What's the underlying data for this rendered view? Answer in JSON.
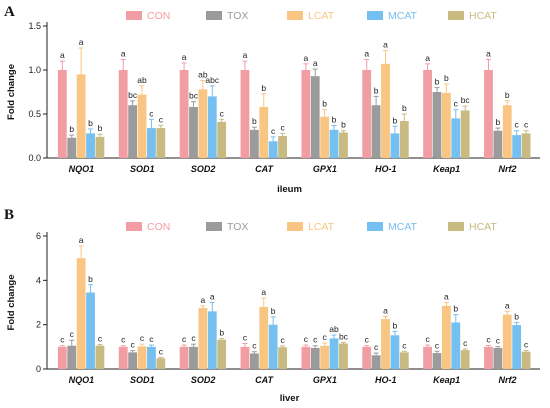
{
  "series_colors": {
    "CON": "#f29ca3",
    "TOX": "#9b9b9b",
    "LCAT": "#f8c583",
    "MCAT": "#76bff1",
    "HCAT": "#c8ba80"
  },
  "chart_data": [
    {
      "panel": "A",
      "type": "bar",
      "xlabel": "ileum",
      "ylabel": "Fold change",
      "ylim": [
        0,
        1.5
      ],
      "yticks": [
        "0.0",
        "0.5",
        "1.0",
        "1.5"
      ],
      "grid": false,
      "legend_position": "top",
      "categories": [
        "NQO1",
        "SOD1",
        "SOD2",
        "CAT",
        "GPX1",
        "HO-1",
        "Keap1",
        "Nrf2"
      ],
      "series": [
        {
          "name": "CON",
          "values": [
            1.0,
            1.0,
            1.0,
            1.0,
            1.0,
            1.0,
            1.0,
            1.0
          ],
          "errors": [
            0.1,
            0.12,
            0.08,
            0.1,
            0.07,
            0.12,
            0.07,
            0.12
          ],
          "labels": [
            "a",
            "a",
            "a",
            "a",
            "a",
            "a",
            "a",
            "a"
          ]
        },
        {
          "name": "TOX",
          "values": [
            0.23,
            0.6,
            0.58,
            0.32,
            0.93,
            0.6,
            0.75,
            0.31
          ],
          "errors": [
            0.03,
            0.05,
            0.06,
            0.03,
            0.08,
            0.1,
            0.05,
            0.03
          ],
          "labels": [
            "b",
            "bc",
            "bc",
            "b",
            "a",
            "b",
            "b",
            "b"
          ]
        },
        {
          "name": "LCAT",
          "values": [
            0.95,
            0.72,
            0.78,
            0.58,
            0.47,
            1.07,
            0.74,
            0.6
          ],
          "errors": [
            0.3,
            0.1,
            0.1,
            0.15,
            0.08,
            0.15,
            0.1,
            0.05
          ],
          "labels": [
            "a",
            "ab",
            "ab",
            "b",
            "b",
            "a",
            "b",
            "b"
          ]
        },
        {
          "name": "MCAT",
          "values": [
            0.28,
            0.34,
            0.7,
            0.19,
            0.32,
            0.28,
            0.45,
            0.26
          ],
          "errors": [
            0.05,
            0.1,
            0.12,
            0.05,
            0.05,
            0.08,
            0.1,
            0.05
          ],
          "labels": [
            "b",
            "c",
            "abc",
            "c",
            "b",
            "b",
            "c",
            "c"
          ]
        },
        {
          "name": "HCAT",
          "values": [
            0.24,
            0.34,
            0.41,
            0.25,
            0.29,
            0.42,
            0.54,
            0.28
          ],
          "errors": [
            0.03,
            0.03,
            0.03,
            0.03,
            0.02,
            0.08,
            0.05,
            0.03
          ],
          "labels": [
            "b",
            "c",
            "c",
            "c",
            "b",
            "b",
            "bc",
            "c"
          ]
        }
      ]
    },
    {
      "panel": "B",
      "type": "bar",
      "xlabel": "liver",
      "ylabel": "Fold change",
      "ylim": [
        0,
        6
      ],
      "yticks": [
        "0",
        "2",
        "4",
        "6"
      ],
      "grid": false,
      "legend_position": "top",
      "categories": [
        "NQO1",
        "SOD1",
        "SOD2",
        "CAT",
        "GPX1",
        "HO-1",
        "Keap1",
        "Nrf2"
      ],
      "series": [
        {
          "name": "CON",
          "values": [
            1.0,
            1.0,
            1.0,
            1.0,
            1.0,
            1.0,
            1.0,
            1.0
          ],
          "errors": [
            0.05,
            0.05,
            0.08,
            0.15,
            0.08,
            0.05,
            0.08,
            0.06
          ],
          "labels": [
            "c",
            "c",
            "c",
            "c",
            "c",
            "c",
            "c",
            "c"
          ]
        },
        {
          "name": "TOX",
          "values": [
            1.05,
            0.75,
            1.0,
            0.7,
            0.95,
            0.62,
            0.72,
            0.95
          ],
          "errors": [
            0.25,
            0.08,
            0.12,
            0.08,
            0.1,
            0.1,
            0.08,
            0.06
          ],
          "labels": [
            "c",
            "c",
            "c",
            "c",
            "c",
            "c",
            "c",
            "c"
          ]
        },
        {
          "name": "LCAT",
          "values": [
            5.0,
            1.02,
            2.75,
            2.8,
            1.05,
            2.25,
            2.85,
            2.45
          ],
          "errors": [
            0.55,
            0.1,
            0.1,
            0.4,
            0.12,
            0.12,
            0.15,
            0.15
          ],
          "labels": [
            "a",
            "c",
            "a",
            "a",
            "c",
            "a",
            "a",
            "a"
          ]
        },
        {
          "name": "MCAT",
          "values": [
            3.45,
            1.0,
            2.6,
            2.0,
            1.38,
            1.52,
            2.1,
            1.98
          ],
          "errors": [
            0.35,
            0.08,
            0.4,
            0.35,
            0.15,
            0.18,
            0.35,
            0.12
          ],
          "labels": [
            "b",
            "c",
            "a",
            "b",
            "ab",
            "b",
            "b",
            "b"
          ]
        },
        {
          "name": "HCAT",
          "values": [
            1.05,
            0.48,
            1.32,
            0.98,
            1.15,
            0.75,
            0.85,
            0.78
          ],
          "errors": [
            0.05,
            0.04,
            0.05,
            0.06,
            0.05,
            0.05,
            0.05,
            0.05
          ],
          "labels": [
            "c",
            "c",
            "b",
            "c",
            "bc",
            "c",
            "c",
            "c"
          ]
        }
      ]
    }
  ]
}
